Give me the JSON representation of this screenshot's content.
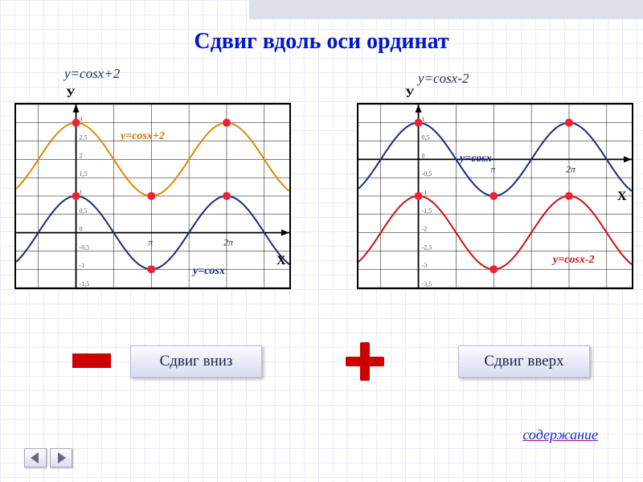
{
  "title": "Сдвиг вдоль оси ординат",
  "left": {
    "subtitle": "y=cosx+2",
    "axis_y": "У",
    "axis_x": "X",
    "xlim": [
      -2.5,
      8.9
    ],
    "ylim": [
      -1.5,
      3.5
    ],
    "ytick_step": 0.5,
    "xtick_labels": [
      {
        "x": 3.1416,
        "label": "π"
      },
      {
        "x": 6.2832,
        "label": "2π"
      }
    ],
    "curves": [
      {
        "name": "cosx+2",
        "color": "#e08a00",
        "shift": 2,
        "label": "y=cosx+2",
        "label_color": "#d07000"
      },
      {
        "name": "cosx",
        "color": "#1a2a80",
        "shift": 0,
        "label": "y=cosx",
        "label_color": "#1a2a80"
      }
    ],
    "markers": [
      {
        "x": 0,
        "y": 1
      },
      {
        "x": 3.1416,
        "y": -1
      },
      {
        "x": 6.2832,
        "y": 1
      },
      {
        "x": 0,
        "y": 3
      },
      {
        "x": 3.1416,
        "y": 1
      },
      {
        "x": 6.2832,
        "y": 3
      }
    ]
  },
  "right": {
    "subtitle": "y=cosx-2",
    "axis_y": "У",
    "axis_x": "X",
    "xlim": [
      -2.5,
      8.9
    ],
    "ylim": [
      -3.5,
      1.5
    ],
    "ytick_step": 0.5,
    "xtick_labels": [
      {
        "x": 3.1416,
        "label": "π"
      },
      {
        "x": 6.2832,
        "label": "2π"
      }
    ],
    "curves": [
      {
        "name": "cosx",
        "color": "#1a2a80",
        "shift": 0,
        "label": "y=cosx",
        "label_color": "#1a2a80"
      },
      {
        "name": "cosx-2",
        "color": "#d01010",
        "shift": -2,
        "label": "y=cosx-2",
        "label_color": "#d01010"
      }
    ],
    "markers": [
      {
        "x": 0,
        "y": 1
      },
      {
        "x": 3.1416,
        "y": -1
      },
      {
        "x": 6.2832,
        "y": 1
      },
      {
        "x": 0,
        "y": -1
      },
      {
        "x": 3.1416,
        "y": -3
      },
      {
        "x": 6.2832,
        "y": -1
      }
    ]
  },
  "button_left": "Сдвиг вниз",
  "button_right": "Сдвиг вверх",
  "content_link": "содержание",
  "colors": {
    "marker": "#e23020",
    "grid": "#000000",
    "title": "#0018c8"
  }
}
